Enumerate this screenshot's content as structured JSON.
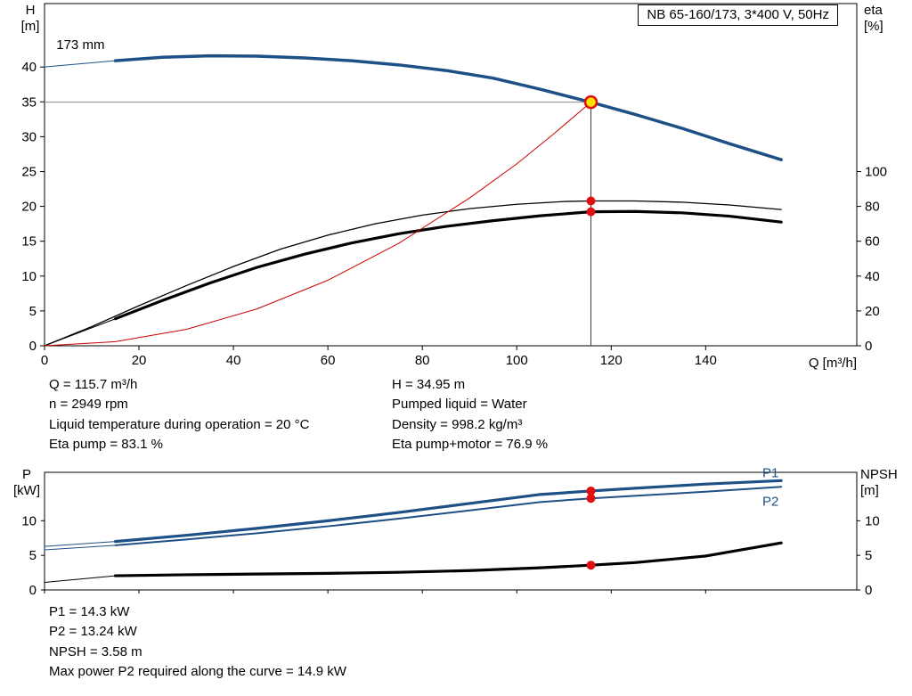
{
  "title_box": "NB 65-160/173, 3*400 V, 50Hz",
  "results": {
    "block1_left": [
      "Q = 115.7 m³/h",
      "n = 2949 rpm",
      "Liquid temperature during operation = 20 °C",
      "Eta pump = 83.1 %"
    ],
    "block1_right": [
      "H = 34.95 m",
      "Pumped liquid = Water",
      "Density = 998.2 kg/m³",
      "Eta pump+motor = 76.9 %"
    ],
    "block2": [
      "P1 = 14.3 kW",
      "P2 = 13.24 kW",
      "NPSH = 3.58 m",
      "Max power P2 required along the curve = 14.9 kW"
    ]
  },
  "chart_data": [
    {
      "type": "line",
      "title": "NB 65-160/173, 3*400 V, 50Hz",
      "xlabel": "Q [m³/h]",
      "ylabel_left_1": "H",
      "ylabel_left_2": "[m]",
      "ylabel_right_1": "eta",
      "ylabel_right_2": "[%]",
      "xlim": [
        0,
        172
      ],
      "ylim_left": [
        0,
        49.1
      ],
      "ylim_right": [
        0,
        196.4
      ],
      "x_ticks": [
        0,
        20,
        40,
        60,
        80,
        100,
        120,
        140
      ],
      "x_tick_labels": true,
      "y_ticks_left": [
        0,
        5,
        10,
        15,
        20,
        25,
        30,
        35,
        40
      ],
      "y_ticks_right": [
        0,
        20,
        40,
        60,
        80,
        100
      ],
      "duty_point": {
        "q": 115.7,
        "h": 34.95,
        "eta_pump": 83.1,
        "eta_pump_motor": 76.9
      },
      "series": [
        {
          "name": "head-curve-lead",
          "axis": "left",
          "color": "#1d5086",
          "width": 1,
          "x": [
            0,
            15
          ],
          "y": [
            40.0,
            40.9
          ]
        },
        {
          "name": "head-curve",
          "axis": "left",
          "color": "#1d5086",
          "width": 3.5,
          "x": [
            15,
            25,
            35,
            45,
            55,
            65,
            75,
            85,
            95,
            105,
            115.7,
            125,
            135,
            145,
            156
          ],
          "y": [
            40.9,
            41.4,
            41.6,
            41.55,
            41.3,
            40.9,
            40.3,
            39.5,
            38.4,
            36.8,
            34.95,
            33.2,
            31.2,
            29.0,
            26.7
          ]
        },
        {
          "name": "eta-pump-curve",
          "axis": "right",
          "color": "#000000",
          "width": 1.3,
          "x": [
            0,
            10,
            20,
            30,
            40,
            50,
            60,
            70,
            80,
            90,
            100,
            110,
            115.7,
            125,
            135,
            145,
            156
          ],
          "y": [
            0,
            11,
            23,
            34.5,
            45.5,
            55.5,
            63.5,
            70,
            75,
            78.7,
            81.2,
            82.8,
            83.1,
            83.1,
            82.4,
            80.8,
            78.2
          ]
        },
        {
          "name": "eta-pump-motor-lead",
          "axis": "right",
          "color": "#000000",
          "width": 1,
          "x": [
            0,
            15
          ],
          "y": [
            0,
            15.5
          ]
        },
        {
          "name": "eta-pump-motor-curve",
          "axis": "right",
          "color": "#000000",
          "width": 3.2,
          "x": [
            15,
            25,
            35,
            45,
            55,
            65,
            75,
            85,
            95,
            105,
            115.7,
            125,
            135,
            145,
            156
          ],
          "y": [
            15.5,
            26,
            36,
            45,
            52.5,
            59,
            64.3,
            68.5,
            71.8,
            74.6,
            76.9,
            77.1,
            76.3,
            74.4,
            71.0
          ]
        },
        {
          "name": "duty-parabola",
          "axis": "left",
          "color": "#cc0000",
          "width": 1,
          "x": [
            0,
            15,
            30,
            45,
            60,
            75,
            90,
            100,
            108,
            115.7
          ],
          "y": [
            0,
            0.59,
            2.35,
            5.29,
            9.4,
            14.7,
            21.2,
            26.1,
            30.5,
            34.95
          ]
        }
      ],
      "guides": [
        {
          "name": "duty-head-gridline",
          "axis": "left",
          "color": "#8a8a8a",
          "width": 1,
          "points": [
            [
              0,
              34.95
            ],
            [
              115.7,
              34.95
            ]
          ]
        },
        {
          "name": "duty-flow-line",
          "axis": "left",
          "color": "#3a3a3a",
          "width": 1,
          "points": [
            [
              115.7,
              0
            ],
            [
              115.7,
              34.95
            ]
          ]
        }
      ],
      "markers": [
        {
          "name": "duty-point",
          "q": 115.7,
          "v": 34.95,
          "axis": "left",
          "r": 6.5,
          "fill": "#ffe400",
          "stroke": "#e01010",
          "stroke_width": 2.5,
          "interactable": true
        },
        {
          "name": "eta-pump-point",
          "q": 115.7,
          "v": 83.1,
          "axis": "right",
          "r": 5,
          "fill": "#e01010",
          "stroke": "none",
          "stroke_width": 0,
          "interactable": false
        },
        {
          "name": "eta-pump-motor-point",
          "q": 115.7,
          "v": 76.9,
          "axis": "right",
          "r": 5,
          "fill": "#e01010",
          "stroke": "none",
          "stroke_width": 0,
          "interactable": false
        }
      ],
      "annotations": [
        {
          "name": "impeller-diameter-label",
          "text": "173 mm",
          "q": 2.5,
          "v": 42.6,
          "axis": "left",
          "color": "#000000",
          "anchor": "start",
          "size": 15
        }
      ]
    },
    {
      "type": "line",
      "title": "",
      "xlabel": "",
      "ylabel_left_1": "P",
      "ylabel_left_2": "[kW]",
      "ylabel_right_1": "NPSH",
      "ylabel_right_2": "[m]",
      "xlim": [
        0,
        172
      ],
      "ylim_left": [
        0,
        17
      ],
      "ylim_right": [
        0,
        17
      ],
      "x_ticks": [
        0,
        20,
        40,
        60,
        80,
        100,
        120,
        140
      ],
      "x_tick_labels": false,
      "y_ticks_left": [
        0,
        5,
        10
      ],
      "y_ticks_right": [
        0,
        5,
        10
      ],
      "duty_point": {
        "q": 115.7,
        "p1": 14.3,
        "p2": 13.24,
        "npsh": 3.58
      },
      "series": [
        {
          "name": "p1-curve-lead",
          "axis": "left",
          "color": "#1d5086",
          "width": 1,
          "x": [
            0,
            15
          ],
          "y": [
            6.3,
            7.0
          ]
        },
        {
          "name": "p1-curve",
          "axis": "left",
          "color": "#1d5086",
          "width": 3.2,
          "x": [
            15,
            30,
            45,
            60,
            75,
            90,
            105,
            115.7,
            125,
            140,
            156
          ],
          "y": [
            7.0,
            7.9,
            8.9,
            10.0,
            11.2,
            12.5,
            13.8,
            14.3,
            14.7,
            15.3,
            15.8
          ]
        },
        {
          "name": "p2-curve-lead",
          "axis": "left",
          "color": "#1d5086",
          "width": 1,
          "x": [
            0,
            15
          ],
          "y": [
            5.8,
            6.45
          ]
        },
        {
          "name": "p2-curve",
          "axis": "left",
          "color": "#1d5086",
          "width": 2,
          "x": [
            15,
            30,
            45,
            60,
            75,
            90,
            105,
            115.7,
            125,
            140,
            156
          ],
          "y": [
            6.45,
            7.3,
            8.2,
            9.2,
            10.3,
            11.5,
            12.7,
            13.24,
            13.6,
            14.2,
            14.9
          ]
        },
        {
          "name": "npsh-curve-lead",
          "axis": "right",
          "color": "#000000",
          "width": 1,
          "x": [
            0,
            15
          ],
          "y": [
            1.1,
            2.05
          ]
        },
        {
          "name": "npsh-curve",
          "axis": "right",
          "color": "#000000",
          "width": 3.2,
          "x": [
            15,
            30,
            45,
            60,
            75,
            90,
            105,
            115.7,
            125,
            140,
            156
          ],
          "y": [
            2.05,
            2.2,
            2.3,
            2.4,
            2.55,
            2.8,
            3.2,
            3.58,
            3.95,
            4.9,
            6.8
          ]
        }
      ],
      "guides": [],
      "markers": [
        {
          "name": "p1-point",
          "q": 115.7,
          "v": 14.3,
          "axis": "left",
          "r": 5,
          "fill": "#e01010",
          "stroke": "none",
          "stroke_width": 0,
          "interactable": false
        },
        {
          "name": "p2-point",
          "q": 115.7,
          "v": 13.24,
          "axis": "left",
          "r": 5,
          "fill": "#e01010",
          "stroke": "none",
          "stroke_width": 0,
          "interactable": false
        },
        {
          "name": "npsh-point",
          "q": 115.7,
          "v": 3.58,
          "axis": "right",
          "r": 5,
          "fill": "#e01010",
          "stroke": "none",
          "stroke_width": 0,
          "interactable": false
        }
      ],
      "annotations": [
        {
          "name": "p1-curve-label",
          "text": "P1",
          "q": 152,
          "v": 16.3,
          "axis": "left",
          "color": "#1d5086",
          "anchor": "start",
          "size": 15
        },
        {
          "name": "p2-curve-label",
          "text": "P2",
          "q": 152,
          "v": 12.2,
          "axis": "left",
          "color": "#1d5086",
          "anchor": "start",
          "size": 15
        }
      ]
    }
  ]
}
